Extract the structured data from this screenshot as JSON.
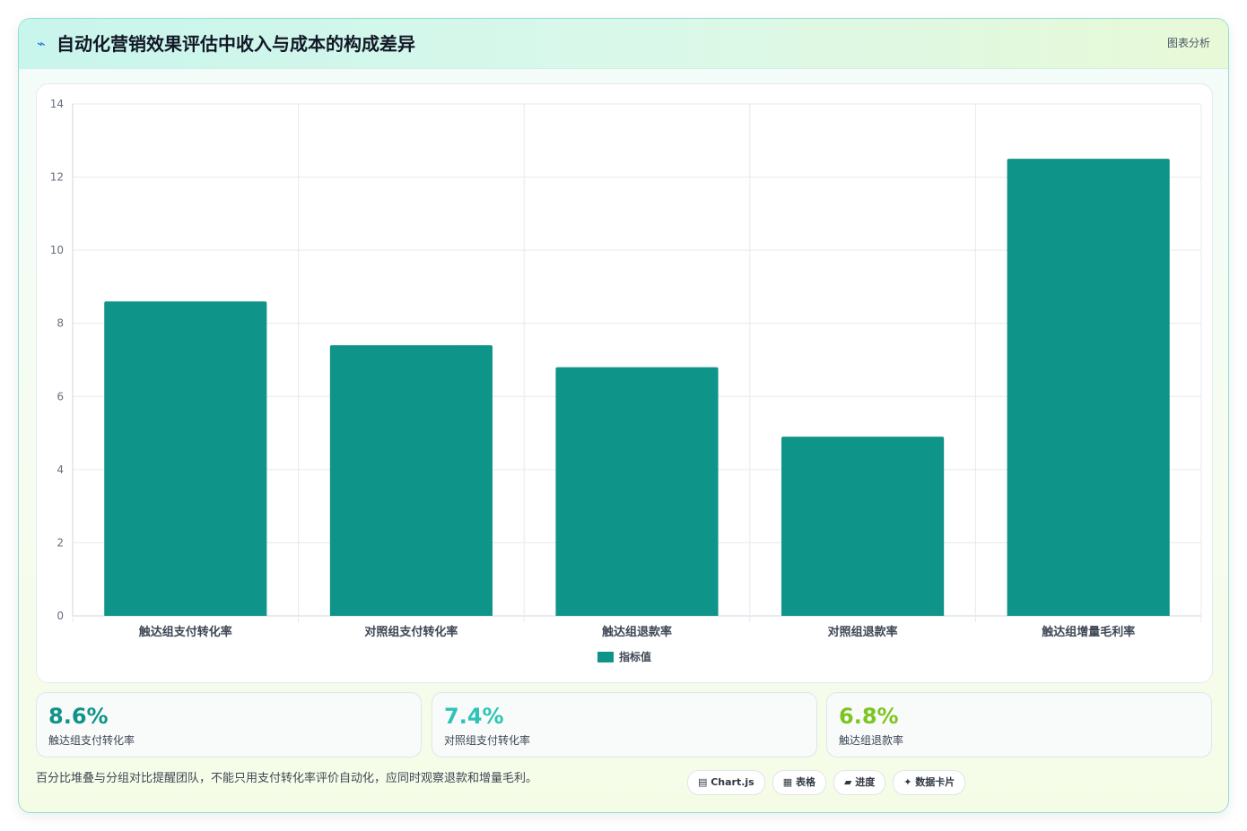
{
  "header": {
    "icon": "trend-icon",
    "icon_glyph": "⌁",
    "title": "自动化营销效果评估中收入与成本的构成差异",
    "tag": "图表分析"
  },
  "chart_data": {
    "type": "bar",
    "categories": [
      "触达组支付转化率",
      "对照组支付转化率",
      "触达组退款率",
      "对照组退款率",
      "触达组增量毛利率"
    ],
    "series": [
      {
        "name": "指标值",
        "values": [
          8.6,
          7.4,
          6.8,
          4.9,
          12.5
        ],
        "color": "#0e9488"
      }
    ],
    "ylim": [
      0,
      14
    ],
    "yticks": [
      0,
      2,
      4,
      6,
      8,
      10,
      12,
      14
    ],
    "grid": true,
    "legend": "bottom"
  },
  "stats": [
    {
      "value": "8.6%",
      "label": "触达组支付转化率",
      "color": "#0e9488"
    },
    {
      "value": "7.4%",
      "label": "对照组支付转化率",
      "color": "#2ec4b6"
    },
    {
      "value": "6.8%",
      "label": "触达组退款率",
      "color": "#7cc521"
    }
  ],
  "footnote": "百分比堆叠与分组对比提醒团队，不能只用支付转化率评价自动化，应同时观察退款和增量毛利。",
  "pills": [
    {
      "label": "▤ Chart.js",
      "icon": "chart-icon"
    },
    {
      "label": "▦ 表格",
      "icon": "table-icon"
    },
    {
      "label": "▰ 进度",
      "icon": "progress-icon"
    },
    {
      "label": "✦ 数据卡片",
      "icon": "card-icon"
    }
  ]
}
